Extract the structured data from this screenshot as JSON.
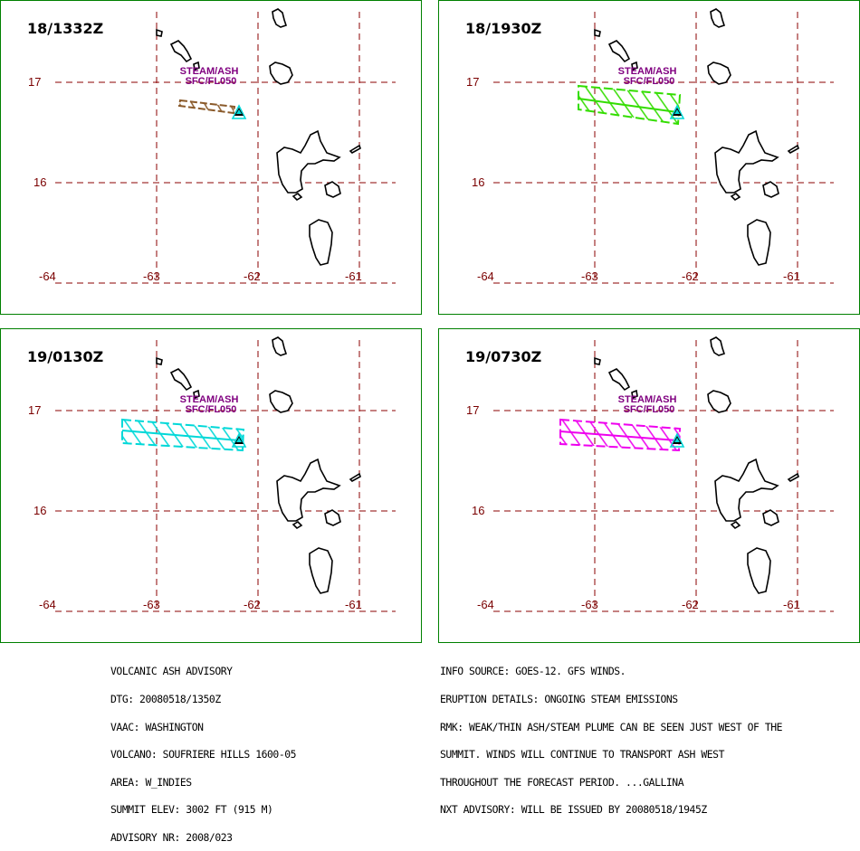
{
  "panels": [
    {
      "time": "18/1332Z",
      "color": "#8a5a2a",
      "shape": "small"
    },
    {
      "time": "18/1930Z",
      "color": "#33dd00",
      "shape": "large"
    },
    {
      "time": "19/0130Z",
      "color": "#00d8d8",
      "shape": "large"
    },
    {
      "time": "19/0730Z",
      "color": "#ee00ee",
      "shape": "large"
    }
  ],
  "map": {
    "lat_labels": [
      "17",
      "16"
    ],
    "lon_labels": [
      "-64",
      "-63",
      "-62",
      "-61"
    ],
    "height_label_top": "STEAM/ASH",
    "height_label_bottom": "SFC/FL050",
    "volcano_icon": "volcano-triangle-icon"
  },
  "advisory_left": [
    "VOLCANIC ASH ADVISORY",
    "DTG: 20080518/1350Z",
    "VAAC: WASHINGTON",
    "VOLCANO: SOUFRIERE HILLS 1600-05",
    "AREA: W_INDIES",
    "SUMMIT ELEV: 3002 FT (915 M)",
    "ADVISORY NR: 2008/023"
  ],
  "advisory_right": [
    "INFO SOURCE: GOES-12. GFS WINDS.",
    "ERUPTION DETAILS: ONGOING STEAM EMISSIONS",
    "RMK: WEAK/THIN ASH/STEAM PLUME CAN BE SEEN JUST WEST OF THE",
    "SUMMIT. WINDS WILL CONTINUE TO TRANSPORT ASH WEST",
    "THROUGHOUT THE FORECAST PERIOD. ...GALLINA",
    "NXT ADVISORY: WILL BE ISSUED BY 20080518/1945Z"
  ]
}
